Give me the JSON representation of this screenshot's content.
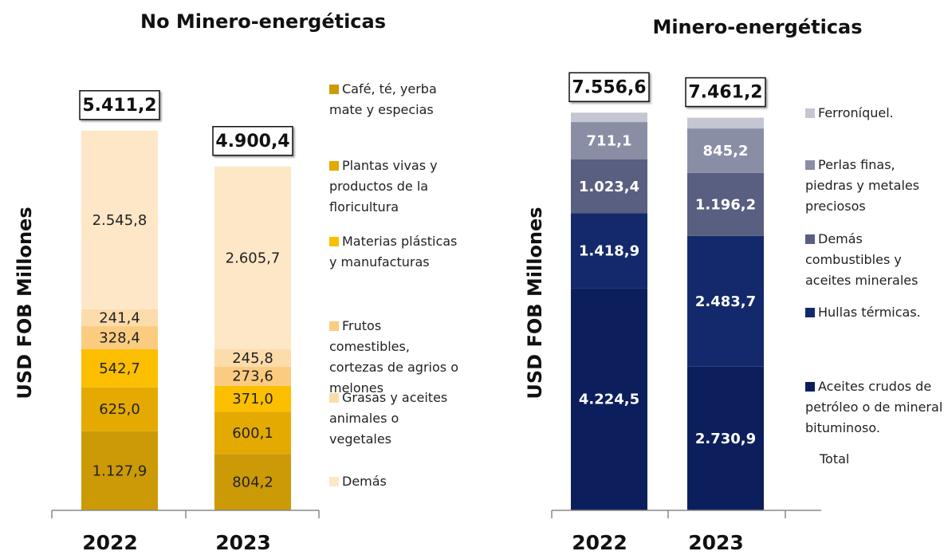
{
  "chart_data": [
    {
      "type": "stacked_bar",
      "title": "No Minero-energéticas",
      "y_label": "USD FOB Millones",
      "categories": [
        "2022",
        "2023"
      ],
      "ylim": [
        0,
        6000
      ],
      "series": [
        {
          "name": "Café, té, yerba mate y especias",
          "color": "#cc9a06",
          "values": [
            1127.9,
            804.2
          ],
          "value_labels": [
            "1.127,9",
            "804,2"
          ]
        },
        {
          "name": "Plantas vivas y productos de la floricultura",
          "color": "#e4aa02",
          "values": [
            625.0,
            600.1
          ],
          "value_labels": [
            "625,0",
            "600,1"
          ]
        },
        {
          "name": "Materias plásticas y manufacturas",
          "color": "#fbbf00",
          "values": [
            542.7,
            371.0
          ],
          "value_labels": [
            "542,7",
            "371,0"
          ]
        },
        {
          "name": "Frutos comestibles, cortezas de agrios o melones",
          "color": "#fbcc80",
          "values": [
            328.4,
            273.6
          ],
          "value_labels": [
            "328,4",
            "273,6"
          ]
        },
        {
          "name": "Grasas y aceites animales o vegetales",
          "color": "#fddcab",
          "values": [
            241.4,
            245.8
          ],
          "value_labels": [
            "241,4",
            "245,8"
          ]
        },
        {
          "name": "Demás",
          "color": "#fee7c7",
          "values": [
            2545.8,
            2605.7
          ],
          "value_labels": [
            "2.545,8",
            "2.605,7"
          ]
        }
      ],
      "totals": [
        5411.2,
        4900.4
      ],
      "total_labels": [
        "5.411,2",
        "4.900,4"
      ]
    },
    {
      "type": "stacked_bar",
      "title": "Minero-energéticas",
      "y_label": "USD FOB Millones",
      "categories": [
        "2022",
        "2023"
      ],
      "ylim": [
        0,
        8000
      ],
      "series": [
        {
          "name": "Aceites crudos de petróleo o de mineral bituminoso.",
          "color": "#0c1f5c",
          "values": [
            4224.5,
            2730.9
          ],
          "value_labels": [
            "4.224,5",
            "2.730,9"
          ]
        },
        {
          "name": "Hullas térmicas.",
          "color": "#13296b",
          "values": [
            1418.9,
            2483.7
          ],
          "value_labels": [
            "1.418,9",
            "2.483,7"
          ]
        },
        {
          "name": "Demás combustibles y aceites minerales",
          "color": "#585f80",
          "values": [
            1023.4,
            1196.2
          ],
          "value_labels": [
            "1.023,4",
            "1.196,2"
          ]
        },
        {
          "name": "Perlas finas, piedras y metales preciosos",
          "color": "#8a8ea5",
          "values": [
            711.1,
            845.2
          ],
          "value_labels": [
            "711,1",
            "845,2"
          ]
        },
        {
          "name": "Ferroníquel.",
          "color": "#c4c6d2",
          "values": [
            178.7,
            205.2
          ],
          "value_labels": [
            null,
            null
          ]
        }
      ],
      "totals": [
        7556.6,
        7461.2
      ],
      "total_labels": [
        "7.556,6",
        "7.461,2"
      ],
      "annotation": "Total"
    }
  ]
}
